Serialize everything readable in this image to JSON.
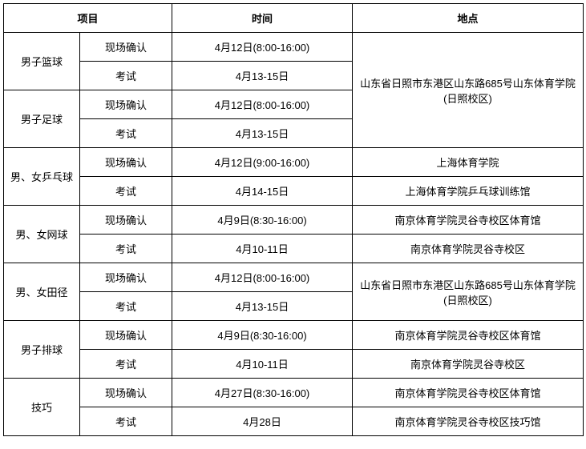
{
  "headers": {
    "project": "项目",
    "time": "时间",
    "location": "地点"
  },
  "labels": {
    "confirm": "现场确认",
    "exam": "考试"
  },
  "rows": [
    {
      "project": "男子篮球",
      "confirm_time": "4月12日(8:00-16:00)",
      "exam_time": "4月13-15日",
      "location_merged": true
    },
    {
      "project": "男子足球",
      "confirm_time": "4月12日(8:00-16:00)",
      "exam_time": "4月13-15日",
      "location_merged": true
    },
    {
      "project": "男、女乒乓球",
      "confirm_time": "4月12日(9:00-16:00)",
      "exam_time": "4月14-15日",
      "confirm_loc": "上海体育学院",
      "exam_loc": "上海体育学院乒乓球训练馆"
    },
    {
      "project": "男、女网球",
      "confirm_time": "4月9日(8:30-16:00)",
      "exam_time": "4月10-11日",
      "confirm_loc": "南京体育学院灵谷寺校区体育馆",
      "exam_loc": "南京体育学院灵谷寺校区"
    },
    {
      "project": "男、女田径",
      "confirm_time": "4月12日(8:00-16:00)",
      "exam_time": "4月13-15日",
      "loc_rowspan2": "山东省日照市东港区山东路685号山东体育学院(日照校区)"
    },
    {
      "project": "男子排球",
      "confirm_time": "4月9日(8:30-16:00)",
      "exam_time": "4月10-11日",
      "confirm_loc": "南京体育学院灵谷寺校区体育馆",
      "exam_loc": "南京体育学院灵谷寺校区"
    },
    {
      "project": "技巧",
      "confirm_time": "4月27日(8:30-16:00)",
      "exam_time": "4月28日",
      "confirm_loc": "南京体育学院灵谷寺校区体育馆",
      "exam_loc": "南京体育学院灵谷寺校区技巧馆"
    }
  ],
  "merged_location_first4": "山东省日照市东港区山东路685号山东体育学院(日照校区)"
}
